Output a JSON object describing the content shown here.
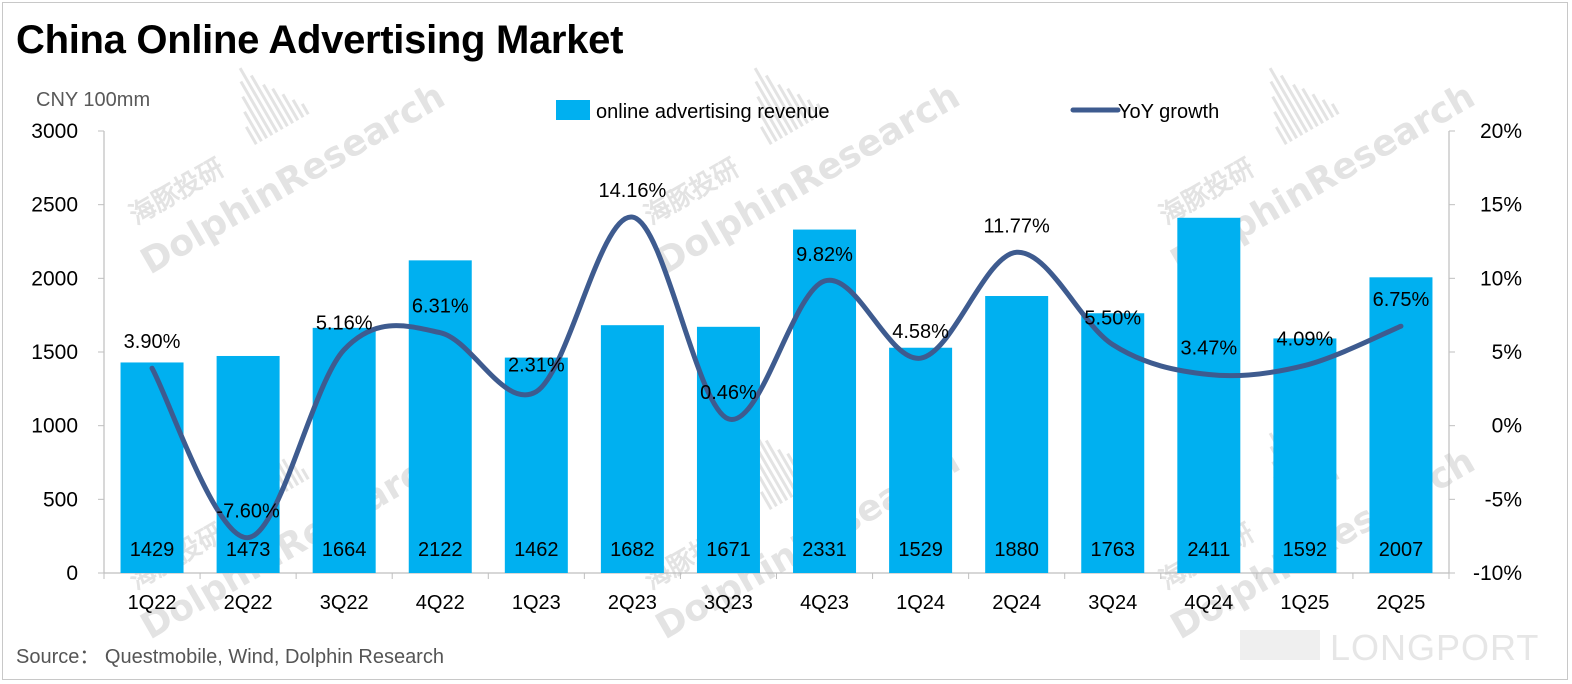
{
  "title": "China Online Advertising Market",
  "source": "Source：  Questmobile, Wind, Dolphin Research",
  "watermarks": {
    "dolphin_en": "DolphinResearch",
    "dolphin_cn": "海豚投研",
    "longport": "LONGPORT"
  },
  "colors": {
    "bar": "#00b0f0",
    "line": "#3e5b8f",
    "axis": "#bfbfbf",
    "text": "#000000",
    "muted": "#595959",
    "watermark": "#e3e3e3"
  },
  "chart_data": {
    "type": "bar",
    "categories": [
      "1Q22",
      "2Q22",
      "3Q22",
      "4Q22",
      "1Q23",
      "2Q23",
      "3Q23",
      "4Q23",
      "1Q24",
      "2Q24",
      "3Q24",
      "4Q24",
      "1Q25",
      "2Q25"
    ],
    "series": [
      {
        "name": "online advertising revenue",
        "type": "bar",
        "axis": "left",
        "values": [
          1429,
          1473,
          1664,
          2122,
          1462,
          1682,
          1671,
          2331,
          1529,
          1880,
          1763,
          2411,
          1592,
          2007
        ]
      },
      {
        "name": "YoY growth",
        "type": "line",
        "axis": "right",
        "values": [
          3.9,
          -7.6,
          5.16,
          6.31,
          2.31,
          14.16,
          0.46,
          9.82,
          4.58,
          11.77,
          5.5,
          3.47,
          4.09,
          6.75
        ],
        "labels": [
          "3.90%",
          "-7.60%",
          "5.16%",
          "6.31%",
          "2.31%",
          "14.16%",
          "0.46%",
          "9.82%",
          "4.58%",
          "11.77%",
          "5.50%",
          "3.47%",
          "4.09%",
          "6.75%"
        ]
      }
    ],
    "left_axis": {
      "label": "CNY 100mm",
      "min": 0,
      "max": 3000,
      "ticks": [
        "0",
        "500",
        "1000",
        "1500",
        "2000",
        "2500",
        "3000"
      ]
    },
    "right_axis": {
      "min": -10,
      "max": 20,
      "ticks": [
        "-10%",
        "-5%",
        "0%",
        "5%",
        "10%",
        "15%",
        "20%"
      ]
    },
    "legend": {
      "position": "top-center",
      "items": [
        "online advertising revenue",
        "YoY growth"
      ]
    }
  }
}
